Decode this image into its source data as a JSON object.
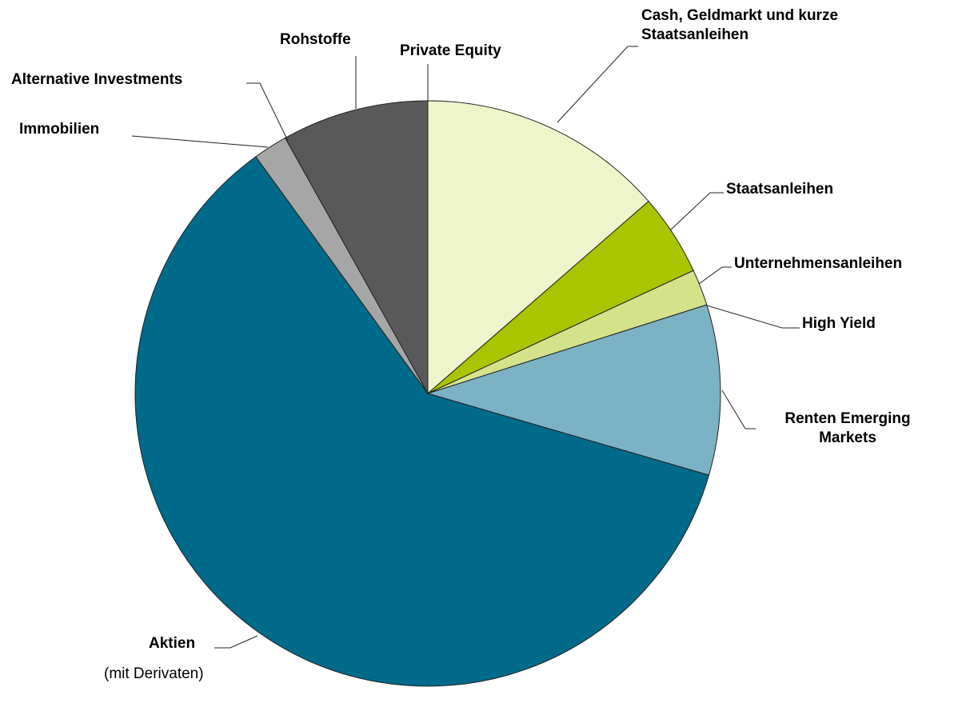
{
  "chart_data": {
    "type": "pie",
    "categories": [
      "Private Equity",
      "Cash, Geldmarkt und kurze Staatsanleihen",
      "Staatsanleihen",
      "Unternehmensanleihen",
      "High Yield",
      "Renten Emerging Markets",
      "Aktien",
      "Immobilien",
      "Alternative Investments",
      "Rohstoffe"
    ],
    "values": [
      0,
      13.6,
      4.5,
      2.0,
      0,
      9.4,
      60.5,
      1.9,
      0,
      8.1
    ],
    "colors": [
      "#595959",
      "#eef4cb",
      "#a9c400",
      "#d4e38a",
      "#d4e38a",
      "#7bb3c4",
      "#006a8a",
      "#a6a6a6",
      "#a6a6a6",
      "#595959"
    ],
    "annotation": "(mit Derivaten)"
  }
}
